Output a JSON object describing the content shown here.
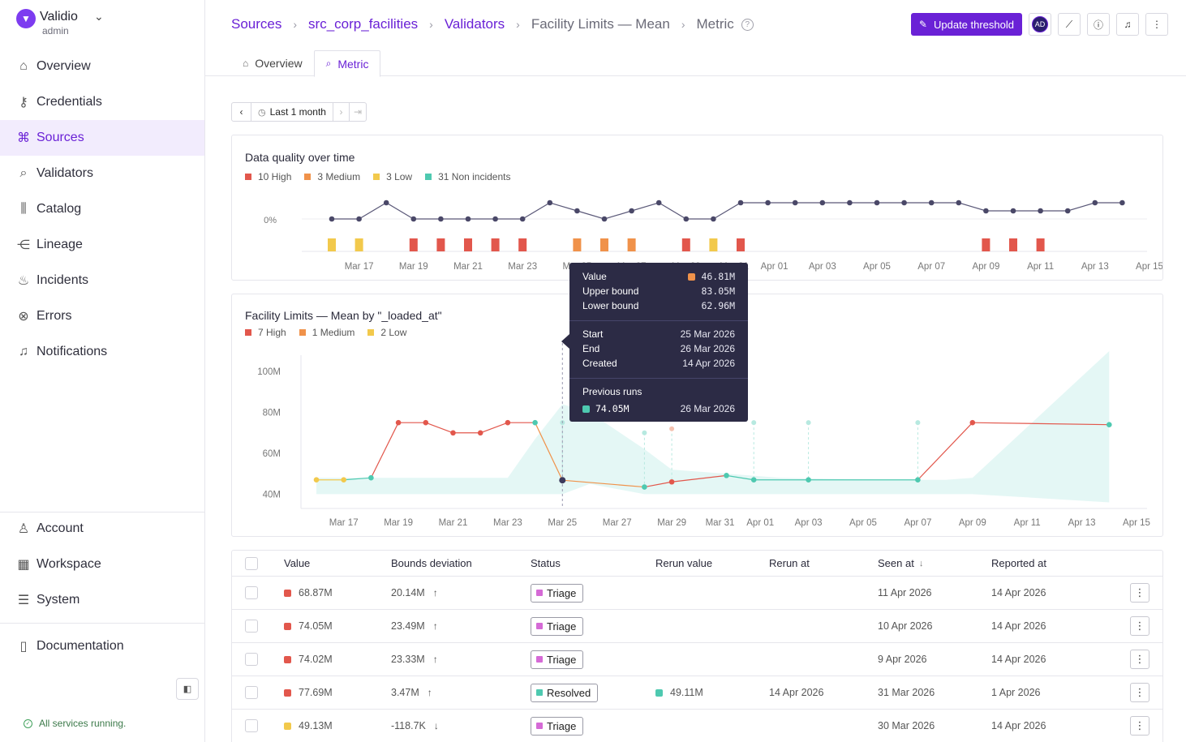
{
  "brand": {
    "name": "Validio",
    "role": "admin"
  },
  "sidebar": {
    "items": [
      {
        "label": "Overview",
        "icon": "home-icon"
      },
      {
        "label": "Credentials",
        "icon": "key-icon"
      },
      {
        "label": "Sources",
        "icon": "sources-icon",
        "active": true
      },
      {
        "label": "Validators",
        "icon": "validator-icon"
      },
      {
        "label": "Catalog",
        "icon": "catalog-icon"
      },
      {
        "label": "Lineage",
        "icon": "lineage-icon"
      },
      {
        "label": "Incidents",
        "icon": "fire-icon"
      },
      {
        "label": "Errors",
        "icon": "error-icon"
      },
      {
        "label": "Notifications",
        "icon": "bell-icon"
      }
    ],
    "bottom_items": [
      {
        "label": "Account",
        "icon": "user-icon"
      },
      {
        "label": "Workspace",
        "icon": "building-icon"
      },
      {
        "label": "System",
        "icon": "server-icon"
      }
    ],
    "docs": "Documentation",
    "status": "All services running."
  },
  "breadcrumbs": [
    "Sources",
    "src_corp_facilities",
    "Validators",
    "Facility Limits — Mean",
    "Metric"
  ],
  "header": {
    "update_button": "Update threshold",
    "avatar": "AD"
  },
  "tabs": [
    {
      "label": "Overview"
    },
    {
      "label": "Metric",
      "active": true
    }
  ],
  "range": {
    "label": "Last 1 month"
  },
  "colors": {
    "accent": "#6a21d6",
    "high": "#e2574c",
    "medium": "#f0924a",
    "low": "#f2c94c",
    "non_incident": "#4ec9b0",
    "band": "#dff6f3"
  },
  "quality_chart": {
    "title": "Data quality over time",
    "legend": [
      {
        "label": "10 High",
        "color": "#e2574c"
      },
      {
        "label": "3 Medium",
        "color": "#f0924a"
      },
      {
        "label": "3 Low",
        "color": "#f2c94c"
      },
      {
        "label": "31 Non incidents",
        "color": "#4ec9b0"
      }
    ],
    "y_tick": "0%"
  },
  "chart_data": [
    {
      "type": "line",
      "title": "Data quality over time",
      "x_ticks": [
        "Mar 17",
        "Mar 19",
        "Mar 21",
        "Mar 23",
        "Mar 25",
        "Mar 27",
        "Mar 29",
        "Mar 31",
        "Apr 01",
        "Apr 03",
        "Apr 05",
        "Apr 07",
        "Apr 09",
        "Apr 11",
        "Apr 13",
        "Apr 15"
      ],
      "y_tick": "0%",
      "series": [
        {
          "name": "quality",
          "x": [
            "Mar 16",
            "Mar 17",
            "Mar 18",
            "Mar 19",
            "Mar 20",
            "Mar 21",
            "Mar 22",
            "Mar 23",
            "Mar 24",
            "Mar 25",
            "Mar 26",
            "Mar 27",
            "Mar 28",
            "Mar 29",
            "Mar 30",
            "Mar 31",
            "Apr 01",
            "Apr 02",
            "Apr 03",
            "Apr 04",
            "Apr 05",
            "Apr 06",
            "Apr 07",
            "Apr 08",
            "Apr 09",
            "Apr 10",
            "Apr 11",
            "Apr 12",
            "Apr 13",
            "Apr 14"
          ],
          "values": [
            0,
            0,
            1,
            0,
            0,
            0,
            0,
            0,
            1,
            0.5,
            0,
            0.5,
            1,
            0,
            0,
            1,
            1,
            1,
            1,
            1,
            1,
            1,
            1,
            1,
            0.5,
            0.5,
            0.5,
            0.5,
            1,
            1
          ]
        }
      ],
      "incident_bars": [
        {
          "x": "Mar 16",
          "severity": "low"
        },
        {
          "x": "Mar 17",
          "severity": "low"
        },
        {
          "x": "Mar 19",
          "severity": "high"
        },
        {
          "x": "Mar 20",
          "severity": "high"
        },
        {
          "x": "Mar 21",
          "severity": "high"
        },
        {
          "x": "Mar 22",
          "severity": "high"
        },
        {
          "x": "Mar 23",
          "severity": "high"
        },
        {
          "x": "Mar 25",
          "severity": "medium"
        },
        {
          "x": "Mar 26",
          "severity": "medium"
        },
        {
          "x": "Mar 27",
          "severity": "medium"
        },
        {
          "x": "Mar 29",
          "severity": "high"
        },
        {
          "x": "Mar 30",
          "severity": "low"
        },
        {
          "x": "Mar 31",
          "severity": "high"
        },
        {
          "x": "Apr 09",
          "severity": "high"
        },
        {
          "x": "Apr 10",
          "severity": "high"
        },
        {
          "x": "Apr 11",
          "severity": "high"
        }
      ]
    },
    {
      "type": "line",
      "title": "Facility Limits — Mean by \"_loaded_at\"",
      "legend": [
        {
          "label": "7 High",
          "color": "#e2574c"
        },
        {
          "label": "1 Medium",
          "color": "#f0924a"
        },
        {
          "label": "2 Low",
          "color": "#f2c94c"
        }
      ],
      "y_ticks": [
        "100M",
        "80M",
        "60M",
        "40M"
      ],
      "ylim": [
        33,
        110
      ],
      "x_ticks": [
        "Mar 17",
        "Mar 19",
        "Mar 21",
        "Mar 23",
        "Mar 25",
        "Mar 27",
        "Mar 29",
        "Mar 31",
        "Apr 01",
        "Apr 03",
        "Apr 05",
        "Apr 07",
        "Apr 09",
        "Apr 11",
        "Apr 13",
        "Apr 15"
      ],
      "points": [
        {
          "x": "Mar 16",
          "y": 47,
          "sev": "low"
        },
        {
          "x": "Mar 17",
          "y": 47,
          "sev": "low"
        },
        {
          "x": "Mar 18",
          "y": 48,
          "sev": "ok"
        },
        {
          "x": "Mar 19",
          "y": 75,
          "sev": "high"
        },
        {
          "x": "Mar 20",
          "y": 75,
          "sev": "high"
        },
        {
          "x": "Mar 21",
          "y": 70,
          "sev": "high"
        },
        {
          "x": "Mar 22",
          "y": 70,
          "sev": "high"
        },
        {
          "x": "Mar 23",
          "y": 75,
          "sev": "high"
        },
        {
          "x": "Mar 24",
          "y": 75,
          "sev": "ok"
        },
        {
          "x": "Mar 25",
          "y": 46.81,
          "sev": "selected"
        },
        {
          "x": "Mar 28",
          "y": 43.5,
          "sev": "ok"
        },
        {
          "x": "Mar 29",
          "y": 46,
          "sev": "high"
        },
        {
          "x": "Mar 31",
          "y": 49.13,
          "sev": "ok"
        },
        {
          "x": "Apr 01",
          "y": 47,
          "sev": "ok"
        },
        {
          "x": "Apr 03",
          "y": 47,
          "sev": "ok"
        },
        {
          "x": "Apr 07",
          "y": 47,
          "sev": "ok"
        },
        {
          "x": "Apr 09",
          "y": 75,
          "sev": "high"
        },
        {
          "x": "Apr 14",
          "y": 74,
          "sev": "ok"
        }
      ],
      "rerun_points": [
        {
          "x": "Mar 25",
          "y": 75
        },
        {
          "x": "Mar 28",
          "y": 70
        },
        {
          "x": "Mar 29",
          "y": 72
        },
        {
          "x": "Apr 01",
          "y": 75
        },
        {
          "x": "Apr 03",
          "y": 75
        },
        {
          "x": "Apr 07",
          "y": 75
        }
      ]
    }
  ],
  "tooltip": {
    "value_label": "Value",
    "value": "46.81M",
    "upper_label": "Upper bound",
    "upper": "83.05M",
    "lower_label": "Lower bound",
    "lower": "62.96M",
    "start_label": "Start",
    "start": "25 Mar 2026",
    "end_label": "End",
    "end": "26 Mar 2026",
    "created_label": "Created",
    "created": "14 Apr 2026",
    "prev_label": "Previous runs",
    "prev_value": "74.05M",
    "prev_date": "26 Mar 2026"
  },
  "table": {
    "headers": {
      "value": "Value",
      "bounds": "Bounds deviation",
      "status": "Status",
      "rerun_value": "Rerun value",
      "rerun_at": "Rerun at",
      "seen_at": "Seen at",
      "reported_at": "Reported at"
    },
    "rows": [
      {
        "sev": "#e2574c",
        "value": "68.87M",
        "bounds": "20.14M",
        "dir": "↑",
        "status": "Triage",
        "status_color": "#d56ad6",
        "rerun_value": "",
        "rerun_color": "",
        "rerun_at": "",
        "seen_at": "11 Apr 2026",
        "reported_at": "14 Apr 2026"
      },
      {
        "sev": "#e2574c",
        "value": "74.05M",
        "bounds": "23.49M",
        "dir": "↑",
        "status": "Triage",
        "status_color": "#d56ad6",
        "rerun_value": "",
        "rerun_color": "",
        "rerun_at": "",
        "seen_at": "10 Apr 2026",
        "reported_at": "14 Apr 2026"
      },
      {
        "sev": "#e2574c",
        "value": "74.02M",
        "bounds": "23.33M",
        "dir": "↑",
        "status": "Triage",
        "status_color": "#d56ad6",
        "rerun_value": "",
        "rerun_color": "",
        "rerun_at": "",
        "seen_at": "9 Apr 2026",
        "reported_at": "14 Apr 2026"
      },
      {
        "sev": "#e2574c",
        "value": "77.69M",
        "bounds": "3.47M",
        "dir": "↑",
        "status": "Resolved",
        "status_color": "#4ec9b0",
        "rerun_value": "49.11M",
        "rerun_color": "#4ec9b0",
        "rerun_at": "14 Apr 2026",
        "seen_at": "31 Mar 2026",
        "reported_at": "1 Apr 2026"
      },
      {
        "sev": "#f2c94c",
        "value": "49.13M",
        "bounds": "-118.7K",
        "dir": "↓",
        "status": "Triage",
        "status_color": "#d56ad6",
        "rerun_value": "",
        "rerun_color": "",
        "rerun_at": "",
        "seen_at": "30 Mar 2026",
        "reported_at": "14 Apr 2026"
      }
    ]
  }
}
